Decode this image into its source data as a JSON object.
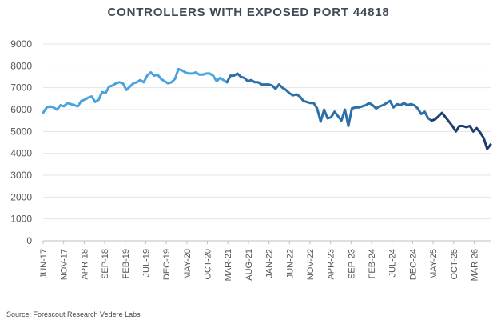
{
  "chart_data": {
    "type": "line",
    "title": "CONTROLLERS WITH EXPOSED PORT 44818",
    "source": "Source: Forescout Research Vedere Labs",
    "xlabel": "",
    "ylabel": "",
    "ylim": [
      0,
      9000
    ],
    "yticks": [
      0,
      1000,
      2000,
      3000,
      4000,
      5000,
      6000,
      7000,
      8000,
      9000
    ],
    "grid": true,
    "x_tick_labels": [
      "JUN-17",
      "NOV-17",
      "APR-18",
      "SEP-18",
      "FEB-19",
      "JUL-19",
      "DEC-19",
      "MAY-20",
      "OCT-20",
      "MAR-21",
      "AUG-21",
      "JAN-22",
      "JUN-22",
      "NOV-22",
      "APR-23",
      "SEP-23",
      "FEB-24",
      "JUL-24",
      "DEC-24",
      "MAY-25",
      "OCT-25",
      "MAR-26"
    ],
    "x_start": "2017-06",
    "x_end": "2026-07",
    "colors": {
      "early": "#4aa3df",
      "mid": "#2c6fa8",
      "late": "#1f3d6b"
    },
    "series": [
      {
        "values": [
          5850,
          6100,
          6150,
          6100,
          6000,
          6200,
          6150,
          6300,
          6250,
          6200,
          6150,
          6400,
          6450,
          6550,
          6600,
          6350,
          6450,
          6800,
          6750,
          7050,
          7100,
          7200,
          7250,
          7200,
          6900,
          7050,
          7200,
          7250,
          7350,
          7250,
          7550,
          7700,
          7550,
          7600,
          7400,
          7300,
          7200,
          7250,
          7400,
          7850,
          7800,
          7700,
          7650,
          7650,
          7700,
          7600,
          7600,
          7650,
          7650,
          7550,
          7300,
          7450,
          7350,
          7250,
          7550,
          7550,
          7650,
          7500,
          7450,
          7300,
          7350,
          7250,
          7250,
          7150,
          7150,
          7150,
          7100,
          6950,
          7150,
          7000,
          6900,
          6750,
          6650,
          6700,
          6600,
          6400,
          6350,
          6300,
          6300,
          6050,
          5450,
          6000,
          5600,
          5650,
          5900,
          5700,
          5500,
          6000,
          5250,
          6050,
          6100,
          6100,
          6150,
          6200,
          6300,
          6200,
          6050,
          6150,
          6200,
          6300,
          6400,
          6100,
          6250,
          6200,
          6300,
          6200,
          6250,
          6200,
          6050,
          5800,
          5900,
          5600,
          5500,
          5550,
          5700,
          5850,
          5650,
          5450,
          5250,
          5000,
          5250,
          5250,
          5200,
          5250,
          5000,
          5150,
          4950,
          4700,
          4200,
          4400
        ]
      }
    ]
  }
}
